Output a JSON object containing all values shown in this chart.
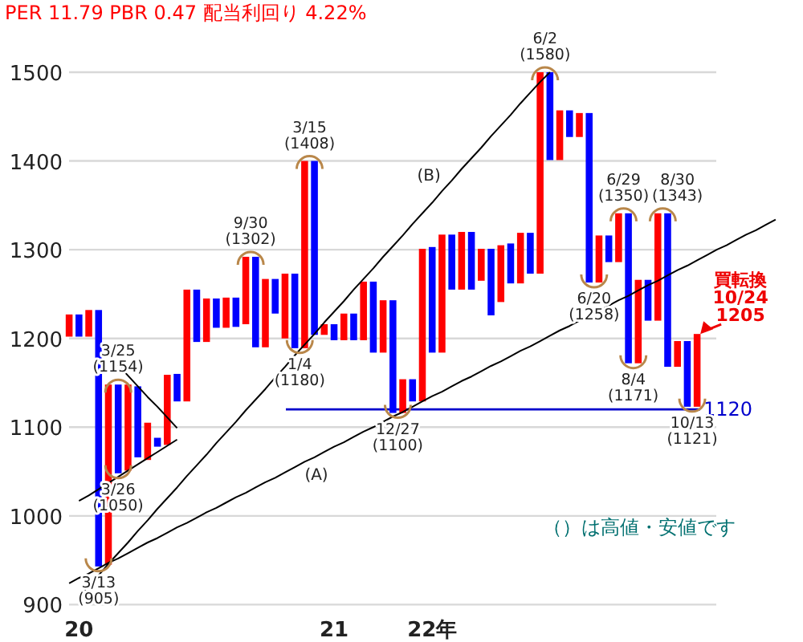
{
  "chart_data": {
    "type": "bar",
    "title": "PER 11.79 PBR 0.47 配当利回り 4.22%",
    "categories": [
      null,
      "20",
      null,
      null,
      null,
      null,
      null,
      null,
      null,
      null,
      null,
      null,
      null,
      null,
      null,
      null,
      null,
      null,
      null,
      null,
      null,
      null,
      null,
      null,
      null,
      null,
      null,
      "21",
      null,
      null,
      null,
      null,
      null,
      null,
      null,
      null,
      null,
      "22年",
      null,
      null,
      null,
      null,
      null,
      null,
      null,
      null,
      null,
      null,
      null,
      null,
      null,
      null,
      null,
      null,
      null,
      null,
      null,
      null,
      null,
      null,
      null,
      null,
      null,
      null,
      null,
      null,
      null,
      null,
      null,
      null,
      null,
      null,
      null
    ],
    "ylim": [
      900,
      1500
    ],
    "yticks": [
      900,
      1000,
      1100,
      1200,
      1300,
      1400,
      1500
    ],
    "grid": "y",
    "series": [
      {
        "base": [
          1202,
          1202,
          1202,
          943,
          945,
          1048,
          1051,
          1066,
          1063,
          1078,
          1080,
          1129,
          1129,
          1196,
          1196,
          1212,
          1212,
          1213,
          1216,
          1190,
          1190,
          1228,
          1200,
          1189,
          1189,
          1204,
          1204,
          1198,
          1198,
          1198,
          1198,
          1184,
          1184,
          1116,
          1116,
          1129,
          1129,
          1184,
          1184,
          1255,
          1255,
          1255,
          1265,
          1226,
          1241,
          1262,
          1262,
          1273,
          1273,
          1401,
          1401,
          1427,
          1427,
          1263,
          1263,
          1286,
          1286,
          1172,
          1172,
          1220,
          1220,
          1168,
          1168,
          1123,
          1123,
          null,
          null,
          null,
          null,
          null,
          null,
          null,
          null
        ],
        "values": [
          25,
          25,
          30,
          289,
          203,
          100,
          97,
          80,
          42,
          10,
          79,
          31,
          126,
          59,
          49,
          33,
          34,
          33,
          76,
          102,
          77,
          39,
          73,
          84,
          211,
          196,
          12,
          18,
          30,
          30,
          66,
          80,
          59,
          127,
          38,
          25,
          172,
          119,
          133,
          62,
          65,
          65,
          36,
          75,
          64,
          45,
          57,
          46,
          227,
          99,
          56,
          30,
          27,
          191,
          53,
          30,
          55,
          169,
          94,
          46,
          121,
          173,
          29,
          74,
          82,
          null,
          null,
          null,
          null,
          null,
          null,
          null,
          null
        ],
        "colors": [
          "#ff0000",
          "#0000ff",
          "#ff0000",
          "#0000ff",
          "#ff0000",
          "#0000ff",
          "#ff0000",
          "#0000ff",
          "#ff0000",
          "#0000ff",
          "#ff0000",
          "#0000ff",
          "#ff0000",
          "#0000ff",
          "#ff0000",
          "#0000ff",
          "#ff0000",
          "#0000ff",
          "#ff0000",
          "#0000ff",
          "#ff0000",
          "#0000ff",
          "#ff0000",
          "#0000ff",
          "#ff0000",
          "#0000ff",
          "#ff0000",
          "#0000ff",
          "#ff0000",
          "#0000ff",
          "#ff0000",
          "#0000ff",
          "#ff0000",
          "#0000ff",
          "#ff0000",
          "#0000ff",
          "#ff0000",
          "#0000ff",
          "#ff0000",
          "#0000ff",
          "#ff0000",
          "#0000ff",
          "#ff0000",
          "#0000ff",
          "#ff0000",
          "#0000ff",
          "#ff0000",
          "#0000ff",
          "#ff0000",
          "#0000ff",
          "#ff0000",
          "#0000ff",
          "#ff0000",
          "#0000ff",
          "#ff0000",
          "#0000ff",
          "#ff0000",
          "#0000ff",
          "#ff0000",
          "#0000ff",
          "#ff0000",
          "#0000ff",
          "#ff0000",
          "#0000ff",
          "#ff0000",
          null,
          null,
          null,
          null,
          null,
          null,
          null,
          null
        ]
      },
      {
        "type": "line",
        "name": "(A)",
        "color": "#000000",
        "values": [
          924,
          930,
          935,
          941,
          947,
          952,
          958,
          964,
          970,
          975,
          981,
          987,
          992,
          998,
          1004,
          1009,
          1015,
          1021,
          1026,
          1032,
          1038,
          1043,
          1049,
          1055,
          1061,
          1066,
          1072,
          1078,
          1083,
          1089,
          1095,
          1100,
          1106,
          1112,
          1117,
          1123,
          1129,
          1135,
          1140,
          1146,
          1152,
          1157,
          1163,
          1169,
          1174,
          1180,
          1186,
          1191,
          1197,
          1203,
          1209,
          1214,
          1220,
          1226,
          1231,
          1237,
          1243,
          1248,
          1254,
          1260,
          1265,
          1271,
          1277,
          1282,
          1288,
          1294,
          1300,
          1305,
          1311,
          1317,
          1322,
          1328,
          1334
        ]
      },
      {
        "type": "line",
        "name": "(B)",
        "color": "#000000",
        "values": [
          null,
          909,
          921,
          933,
          946,
          958,
          970,
          983,
          995,
          1008,
          1020,
          1032,
          1045,
          1057,
          1069,
          1082,
          1094,
          1106,
          1119,
          1131,
          1143,
          1156,
          1168,
          1181,
          1193,
          1205,
          1218,
          1230,
          1242,
          1255,
          1267,
          1279,
          1292,
          1304,
          1316,
          1329,
          1341,
          1353,
          1366,
          1378,
          1391,
          1403,
          1415,
          1428,
          1440,
          1452,
          1465,
          1477,
          1489,
          1500,
          null,
          null,
          null,
          null,
          null,
          null,
          null,
          null,
          null,
          null,
          null,
          null,
          null,
          null,
          null,
          null,
          null,
          null,
          null,
          null,
          null,
          null,
          null
        ]
      },
      {
        "type": "line",
        "color": "#000000",
        "values": [
          null,
          1017,
          1023,
          1030,
          1037,
          1044,
          1051,
          1058,
          1065,
          1072,
          1079,
          1086,
          null,
          null,
          null,
          null,
          null,
          null,
          null,
          null,
          null,
          null,
          null,
          null,
          null,
          null,
          null,
          null,
          null,
          null,
          null,
          null,
          null,
          null,
          null,
          null,
          null,
          null,
          null,
          null,
          null,
          null,
          null,
          null,
          null,
          null,
          null,
          null,
          null,
          null,
          null,
          null,
          null,
          null,
          null,
          null,
          null,
          null,
          null,
          null,
          null,
          null,
          null,
          null,
          null,
          null,
          null,
          null,
          null,
          null,
          null,
          null,
          null
        ]
      },
      {
        "type": "line",
        "color": "#000000",
        "values": [
          null,
          null,
          null,
          null,
          null,
          1170,
          1158,
          1146,
          1134,
          1123,
          1111,
          1099,
          null,
          null,
          null,
          null,
          null,
          null,
          null,
          null,
          null,
          null,
          null,
          null,
          null,
          null,
          null,
          null,
          null,
          null,
          null,
          null,
          null,
          null,
          null,
          null,
          null,
          null,
          null,
          null,
          null,
          null,
          null,
          null,
          null,
          null,
          null,
          null,
          null,
          null,
          null,
          null,
          null,
          null,
          null,
          null,
          null,
          null,
          null,
          null,
          null,
          null,
          null,
          null,
          null,
          null,
          null,
          null,
          null,
          null,
          null,
          null,
          null
        ]
      }
    ],
    "ref_lines": [
      {
        "axis": "y",
        "value": 1120,
        "label": "1120",
        "color": "#0000cc"
      }
    ],
    "annotations": [
      {
        "text": "3/13 (905)",
        "y": 943
      },
      {
        "text": "3/25 (1154)",
        "y": 1148
      },
      {
        "text": "3/26 (1050)",
        "y": 1048
      },
      {
        "text": "9/30 (1302)",
        "y": 1292
      },
      {
        "text": "1/4 (1180)",
        "y": 1189
      },
      {
        "text": "3/15 (1408)",
        "y": 1400
      },
      {
        "text": "12/27 (1100)",
        "y": 1116
      },
      {
        "text": "6/2 (1580)",
        "y": 1500
      },
      {
        "text": "6/20 (1258)",
        "y": 1263
      },
      {
        "text": "6/29 (1350)",
        "y": 1341
      },
      {
        "text": "8/4 (1171)",
        "y": 1172
      },
      {
        "text": "8/30 (1343)",
        "y": 1341
      },
      {
        "text": "10/13 (1121)",
        "y": 1123
      },
      "買転換 10/24 1205",
      "（）は高値・安値です"
    ]
  }
}
